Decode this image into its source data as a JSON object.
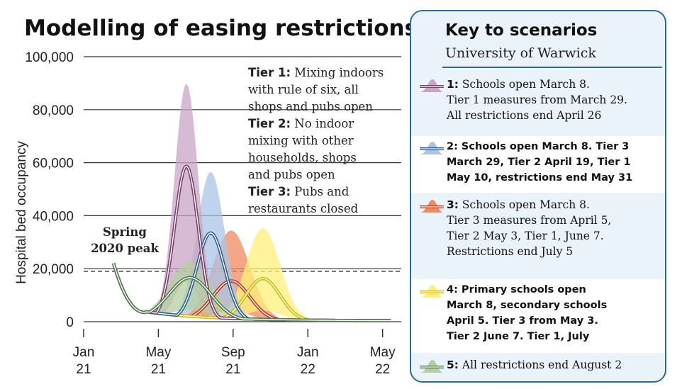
{
  "title": "Modelling of easing restrictions",
  "chart_data": {
    "type": "area",
    "title": "Modelling of easing restrictions",
    "ylabel": "Hospital bed occupancy",
    "xlabel": "",
    "ylim": [
      0,
      100000
    ],
    "yticks": [
      0,
      20000,
      40000,
      60000,
      80000,
      100000
    ],
    "ytick_labels": [
      "0",
      "20,000",
      "40,000",
      "60,000",
      "80,000",
      "100,000"
    ],
    "xlim": [
      0,
      17
    ],
    "xticks": [
      0,
      4,
      8,
      12,
      16
    ],
    "xtick_labels": [
      [
        "Jan",
        "21"
      ],
      [
        "May",
        "21"
      ],
      [
        "Sep",
        "21"
      ],
      [
        "Jan",
        "22"
      ],
      [
        "May",
        "22"
      ]
    ],
    "reference_line": {
      "label": "Spring 2020 peak",
      "value": 19000
    },
    "series": [
      {
        "name": "1",
        "color": "#7d3f6e",
        "band_color": "#c9a3c4",
        "peak_x": 5.5,
        "median_peak": 58000,
        "upper_peak": 89000,
        "width": 0.9
      },
      {
        "name": "2",
        "color": "#2b5f8f",
        "band_color": "#aac4e6",
        "peak_x": 6.8,
        "median_peak": 33000,
        "upper_peak": 56000,
        "width": 1.05
      },
      {
        "name": "3",
        "color": "#b23a1d",
        "band_color": "#f08a5f",
        "peak_x": 7.9,
        "median_peak": 15000,
        "upper_peak": 34000,
        "width": 1.4
      },
      {
        "name": "4",
        "color": "#d4b800",
        "band_color": "#fff07a",
        "peak_x": 9.6,
        "median_peak": 16000,
        "upper_peak": 35000,
        "width": 1.3
      },
      {
        "name": "5",
        "color": "#4f7a4f",
        "band_color": "#b5cfa0",
        "peak_x": 5.7,
        "median_peak": 16000,
        "upper_peak": 22000,
        "width": 1.6
      }
    ],
    "start": {
      "x": 1.6,
      "y": 22000
    },
    "trough": {
      "x": 3.3,
      "y": 3500
    }
  },
  "notes": [
    {
      "bold": "Tier 1:",
      "text": " Mixing indoors"
    },
    {
      "bold": "",
      "text": "with rule of six, all"
    },
    {
      "bold": "",
      "text": "shops and pubs open"
    },
    {
      "bold": "Tier 2:",
      "text": " No indoor"
    },
    {
      "bold": "",
      "text": "mixing with other"
    },
    {
      "bold": "",
      "text": "households, shops"
    },
    {
      "bold": "",
      "text": "and pubs open"
    },
    {
      "bold": "Tier 3:",
      "text": " Pubs and"
    },
    {
      "bold": "",
      "text": "restaurants closed"
    }
  ],
  "peak_label": [
    "Spring",
    "2020 peak"
  ],
  "key": {
    "title": "Key to scenarios",
    "subtitle": "University of Warwick",
    "items": [
      {
        "lines": [
          "1: Schools open March 8.",
          "Tier 1 measures from March 29.",
          "All restrictions end April 26"
        ],
        "boldall": false
      },
      {
        "lines": [
          "2: Schools open March 8. Tier 3",
          "March 29, Tier 2 April 19, Tier 1",
          "May 10, restrictions end May 31"
        ],
        "boldall": true
      },
      {
        "lines": [
          "3: Schools open March 8.",
          "Tier 3 measures from April 5,",
          "Tier 2 May 3, Tier 1, June 7.",
          "Restrictions end July 5"
        ],
        "boldall": false
      },
      {
        "lines": [
          "4: Primary schools open",
          "March 8, secondary schools",
          "April 5. Tier 3 from May 3.",
          "Tier 2 June 7. Tier 1, July"
        ],
        "boldall": true
      },
      {
        "lines": [
          "5: All restrictions end August 2"
        ],
        "boldall": false
      }
    ]
  }
}
